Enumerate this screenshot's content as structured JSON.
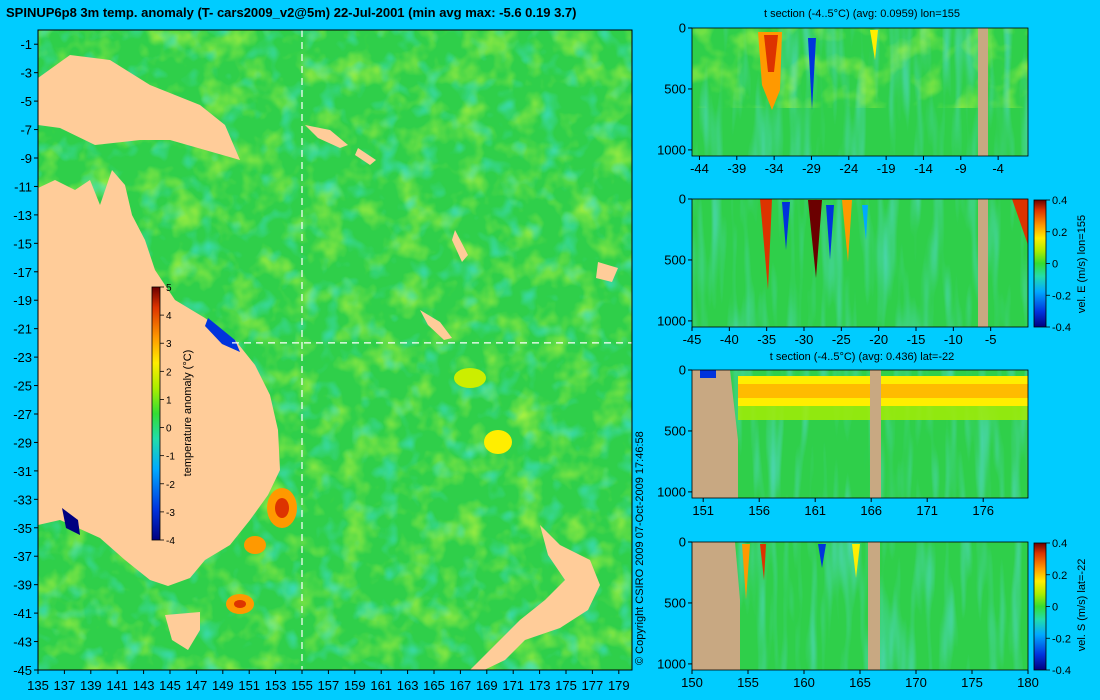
{
  "header": {
    "title": "SPINUP6p8 3m temp. anomaly (T- cars2009_v2@5m) 22-Jul-2001 (min avg max: -5.6 0.19 3.7)"
  },
  "copyright": "© Copyright CSIRO 2009   07-Oct-2009 17:46:58",
  "colors": {
    "background": "#00ccff",
    "land": "#ffcc99",
    "bathymetry": "#c8a882",
    "ocean_base": "#2fcf4a",
    "colormap": [
      "#000080",
      "#0033dd",
      "#00aaff",
      "#22ddaa",
      "#44dd22",
      "#ccee00",
      "#ffee00",
      "#ff9900",
      "#dd3300",
      "#6b0000"
    ]
  },
  "chart_data": [
    {
      "id": "map",
      "type": "heatmap",
      "title": "SPINUP6p8 3m temp. anomaly (T- cars2009_v2@5m) 22-Jul-2001 (min avg max: -5.6 0.19 3.7)",
      "x_ticks": [
        135,
        137,
        139,
        141,
        143,
        145,
        147,
        149,
        151,
        153,
        155,
        157,
        159,
        161,
        163,
        165,
        167,
        169,
        171,
        173,
        175,
        177,
        179
      ],
      "y_ticks": [
        -1,
        -3,
        -5,
        -7,
        -9,
        -11,
        -13,
        -15,
        -17,
        -19,
        -21,
        -23,
        -25,
        -27,
        -29,
        -31,
        -33,
        -35,
        -37,
        -39,
        -41,
        -43,
        -45
      ],
      "xlim": [
        135,
        180
      ],
      "ylim": [
        -45,
        0
      ],
      "section_lines": {
        "lon": 155,
        "lat": -22
      },
      "colorbar": {
        "label": "temperature anomaly (°C)",
        "ticks": [
          5,
          4,
          3,
          2,
          1,
          0,
          -1,
          -2,
          -3,
          -4
        ],
        "range": [
          -4,
          5
        ]
      }
    },
    {
      "id": "t-section-lon",
      "type": "heatmap",
      "title": "t section (-4..5°C) (avg: 0.0959) lon=155",
      "x_ticks": [
        -44,
        -39,
        -34,
        -29,
        -24,
        -19,
        -14,
        -9,
        -4
      ],
      "y_ticks": [
        0,
        500,
        1000
      ],
      "xlim": [
        -45,
        0
      ],
      "ylim": [
        1050,
        0
      ]
    },
    {
      "id": "vel-e-section-lon",
      "type": "heatmap",
      "title": "",
      "x_ticks": [
        -45,
        -40,
        -35,
        -30,
        -25,
        -20,
        -15,
        -10,
        -5
      ],
      "y_ticks": [
        0,
        500,
        1000
      ],
      "xlim": [
        -45,
        0
      ],
      "ylim": [
        1050,
        0
      ],
      "colorbar": {
        "label": "vel. E (m/s) lon=155",
        "ticks": [
          "0.4",
          "0.2",
          "0",
          "-0.2",
          "-0.4"
        ],
        "range": [
          -0.4,
          0.4
        ]
      }
    },
    {
      "id": "t-section-lat",
      "type": "heatmap",
      "title": "t section (-4..5°C) (avg: 0.436) lat=-22",
      "x_ticks": [
        151,
        156,
        161,
        166,
        171,
        176
      ],
      "y_ticks": [
        0,
        500,
        1000
      ],
      "xlim": [
        150,
        180
      ],
      "ylim": [
        1050,
        0
      ]
    },
    {
      "id": "vel-s-section-lat",
      "type": "heatmap",
      "title": "",
      "x_ticks": [
        150,
        155,
        160,
        165,
        170,
        175,
        180
      ],
      "y_ticks": [
        0,
        500,
        1000
      ],
      "xlim": [
        150,
        180
      ],
      "ylim": [
        1050,
        0
      ],
      "colorbar": {
        "label": "vel. S (m/s) lat=-22",
        "ticks": [
          "0.4",
          "0.2",
          "0",
          "-0.2",
          "-0.4"
        ],
        "range": [
          -0.4,
          0.4
        ]
      }
    }
  ]
}
